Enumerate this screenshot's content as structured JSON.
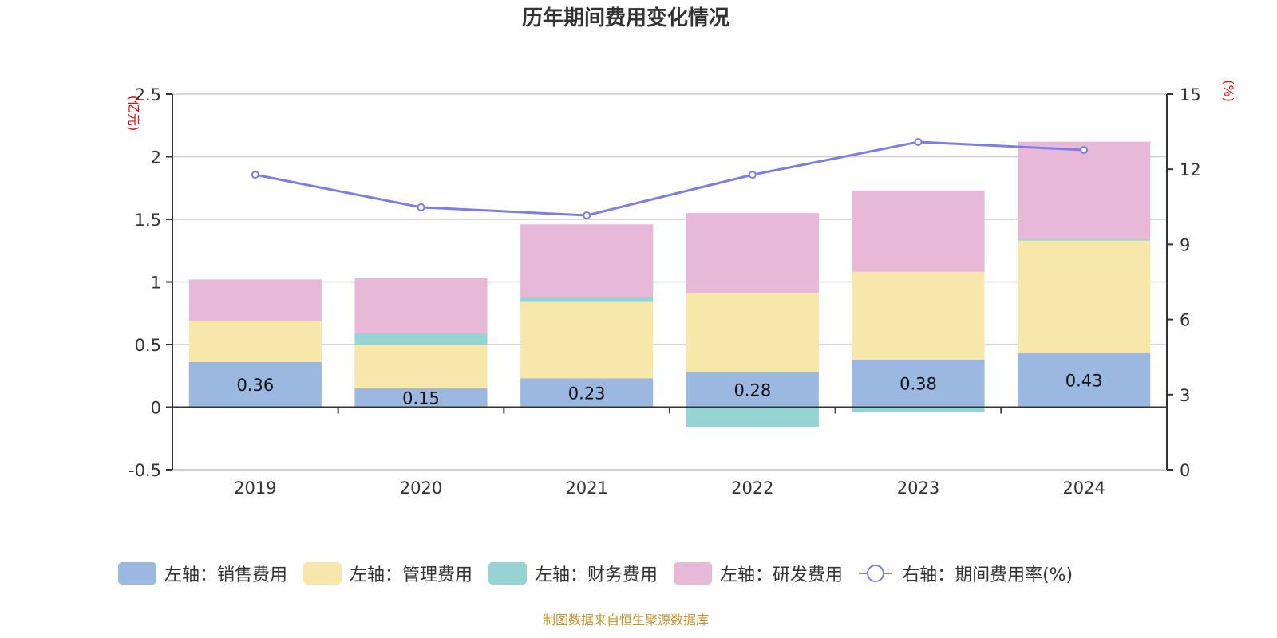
{
  "chart_data": {
    "type": "bar+line",
    "title": "历年期间费用变化情况",
    "categories": [
      "2019",
      "2020",
      "2021",
      "2022",
      "2023",
      "2024"
    ],
    "left_axis": {
      "label": "(亿元)",
      "ylim": [
        -0.5,
        2.5
      ],
      "ticks": [
        "-0.5",
        "0",
        "0.5",
        "1",
        "1.5",
        "2",
        "2.5"
      ],
      "tick_values": [
        -0.5,
        0,
        0.5,
        1,
        1.5,
        2,
        2.5
      ]
    },
    "right_axis": {
      "label": "(%)",
      "ylim": [
        0,
        15
      ],
      "ticks": [
        "0",
        "3",
        "6",
        "9",
        "12",
        "15"
      ],
      "tick_values": [
        0,
        3,
        6,
        9,
        12,
        15
      ]
    },
    "grid": true,
    "legend_position": "bottom",
    "series": [
      {
        "name": "左轴：销售费用",
        "type": "bar",
        "axis": "left",
        "color": "#9bb8e1",
        "values": [
          0.36,
          0.15,
          0.23,
          0.28,
          0.38,
          0.43
        ],
        "labels": [
          "0.36",
          "0.15",
          "0.23",
          "0.28",
          "0.38",
          "0.43"
        ]
      },
      {
        "name": "左轴：管理费用",
        "type": "bar",
        "axis": "left",
        "color": "#f8e7aa",
        "values": [
          0.33,
          0.35,
          0.61,
          0.63,
          0.7,
          0.9
        ]
      },
      {
        "name": "左轴：财务费用",
        "type": "bar",
        "axis": "left",
        "color": "#96d3d3",
        "values": [
          -0.01,
          0.09,
          0.04,
          -0.16,
          -0.04,
          0.01
        ]
      },
      {
        "name": "左轴：研发费用",
        "type": "bar",
        "axis": "left",
        "color": "#e7b8d8",
        "values": [
          0.33,
          0.44,
          0.58,
          0.64,
          0.65,
          0.78
        ]
      },
      {
        "name": "右轴：期间费用率(%)",
        "type": "line",
        "axis": "right",
        "color": "#7b7ee8",
        "values": [
          11.78,
          10.48,
          10.16,
          11.78,
          13.09,
          12.77
        ]
      }
    ]
  },
  "footer": "制图数据来自恒生聚源数据库",
  "colors": {
    "axis_label": "#ff0000",
    "grid": "#cccccc",
    "axis": "#333333",
    "footer": "#c8922a"
  }
}
